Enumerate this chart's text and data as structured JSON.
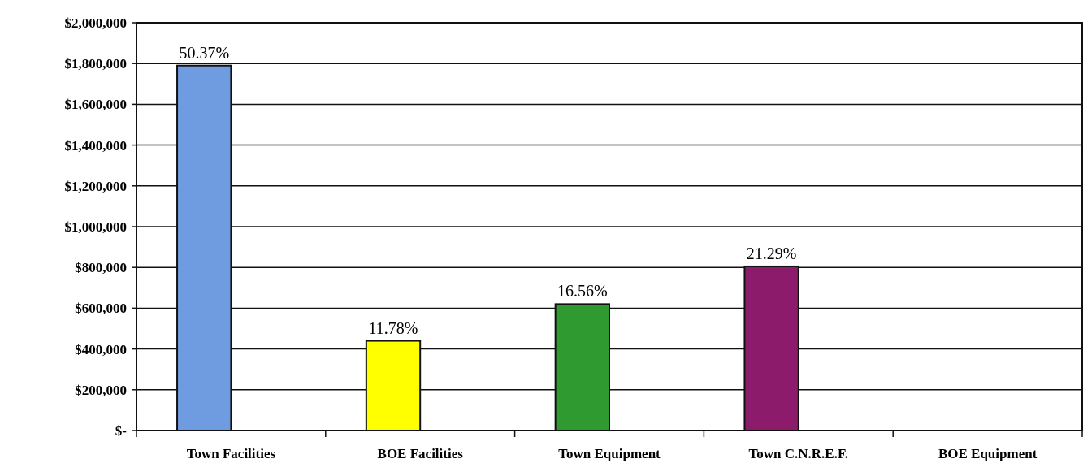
{
  "chart_data": {
    "type": "bar",
    "categories": [
      "Town Facilities",
      "BOE Facilities",
      "Town Equipment",
      "Town C.N.R.E.F.",
      "BOE Equipment"
    ],
    "values": [
      1790000,
      440000,
      620000,
      805000,
      0
    ],
    "colors": [
      "#6f9be0",
      "#ffff00",
      "#2f9a2f",
      "#8c1b6c",
      "#cccccc"
    ],
    "annotations": [
      {
        "text": "50.37%",
        "x": "Town Facilities",
        "y": 1790000
      },
      {
        "text": "11.78%",
        "x": "BOE Facilities",
        "y": 440000
      },
      {
        "text": "16.56%",
        "x": "Town Equipment",
        "y": 620000
      },
      {
        "text": "21.29%",
        "x": "Town C.N.R.E.F.",
        "y": 805000
      }
    ],
    "ylim": [
      0,
      2000000
    ],
    "yticks": [
      {
        "value": 0,
        "label": "$-"
      },
      {
        "value": 200000,
        "label": "$200,000"
      },
      {
        "value": 400000,
        "label": "$400,000"
      },
      {
        "value": 600000,
        "label": "$600,000"
      },
      {
        "value": 800000,
        "label": "$800,000"
      },
      {
        "value": 1000000,
        "label": "$1,000,000"
      },
      {
        "value": 1200000,
        "label": "$1,200,000"
      },
      {
        "value": 1400000,
        "label": "$1,400,000"
      },
      {
        "value": 1600000,
        "label": "$1,600,000"
      },
      {
        "value": 1800000,
        "label": "$1,800,000"
      },
      {
        "value": 2000000,
        "label": "$2,000,000"
      }
    ],
    "grid": "y"
  }
}
